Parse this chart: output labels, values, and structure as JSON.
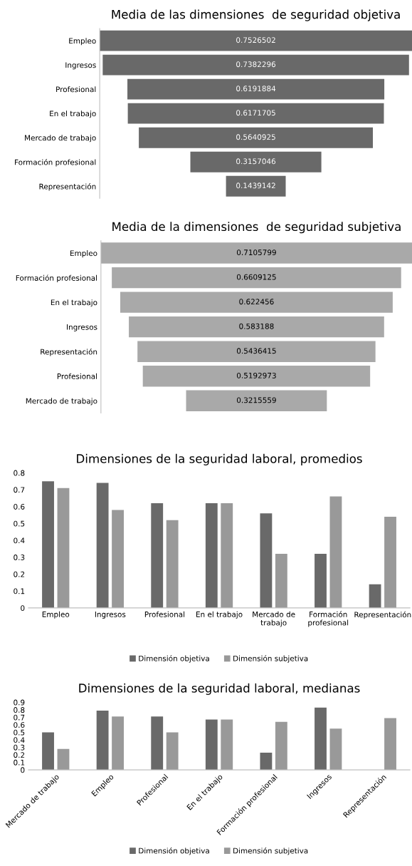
{
  "chart_data": [
    {
      "type": "other",
      "title": "Media de las dimensiones  de seguridad objetiva",
      "categories": [
        "Empleo",
        "Ingresos",
        "Profesional",
        "En el trabajo",
        "Mercado de trabajo",
        "Formación profesional",
        "Representación"
      ],
      "values": [
        0.7526502,
        0.7382296,
        0.6191884,
        0.6171705,
        0.5640925,
        0.3157046,
        0.1439142
      ],
      "color": "#696969",
      "data_labels": true
    },
    {
      "type": "other",
      "title": "Media de la dimensiones  de seguridad subjetiva",
      "categories": [
        "Empleo",
        "Formación profesional",
        "En el trabajo",
        "Ingresos",
        "Representación",
        "Profesional",
        "Mercado de trabajo"
      ],
      "values": [
        0.7105799,
        0.6609125,
        0.622456,
        0.583188,
        0.5436415,
        0.5192973,
        0.3215559
      ],
      "color": "#a9a9a9",
      "data_labels": true
    },
    {
      "type": "bar",
      "title": "Dimensiones de la seguridad laboral, promedios",
      "categories": [
        "Empleo",
        "Ingresos",
        "Profesional",
        "En el trabajo",
        "Mercado de trabajo",
        "Formación profesional",
        "Representación"
      ],
      "series": [
        {
          "name": "Dimensión objetiva",
          "color": "#696969",
          "values": [
            0.75,
            0.74,
            0.62,
            0.62,
            0.56,
            0.32,
            0.14
          ]
        },
        {
          "name": "Dimensión subjetiva",
          "color": "#999999",
          "values": [
            0.71,
            0.58,
            0.52,
            0.62,
            0.32,
            0.66,
            0.54
          ]
        }
      ],
      "ylim": [
        0,
        0.8
      ],
      "yticks": [
        0,
        0.1,
        0.2,
        0.3,
        0.4,
        0.5,
        0.6,
        0.7,
        0.8
      ],
      "legend": "bottom",
      "grid": false
    },
    {
      "type": "bar",
      "title": "Dimensiones de la seguridad laboral, medianas",
      "categories": [
        "Mercado de trabajo",
        "Empleo",
        "Profesional",
        "En el trabajo",
        "Formación profesional",
        "Ingresos",
        "Representación"
      ],
      "series": [
        {
          "name": "Dimensión objetiva",
          "color": "#696969",
          "values": [
            0.5,
            0.79,
            0.71,
            0.67,
            0.23,
            0.83,
            null
          ]
        },
        {
          "name": "Dimensión subjetiva",
          "color": "#999999",
          "values": [
            0.28,
            0.71,
            0.5,
            0.67,
            0.64,
            0.55,
            0.69
          ]
        }
      ],
      "ylim": [
        0,
        0.9
      ],
      "yticks": [
        0,
        0.1,
        0.2,
        0.3,
        0.4,
        0.5,
        0.6,
        0.7,
        0.8,
        0.9
      ],
      "legend": "bottom",
      "grid": false
    }
  ]
}
